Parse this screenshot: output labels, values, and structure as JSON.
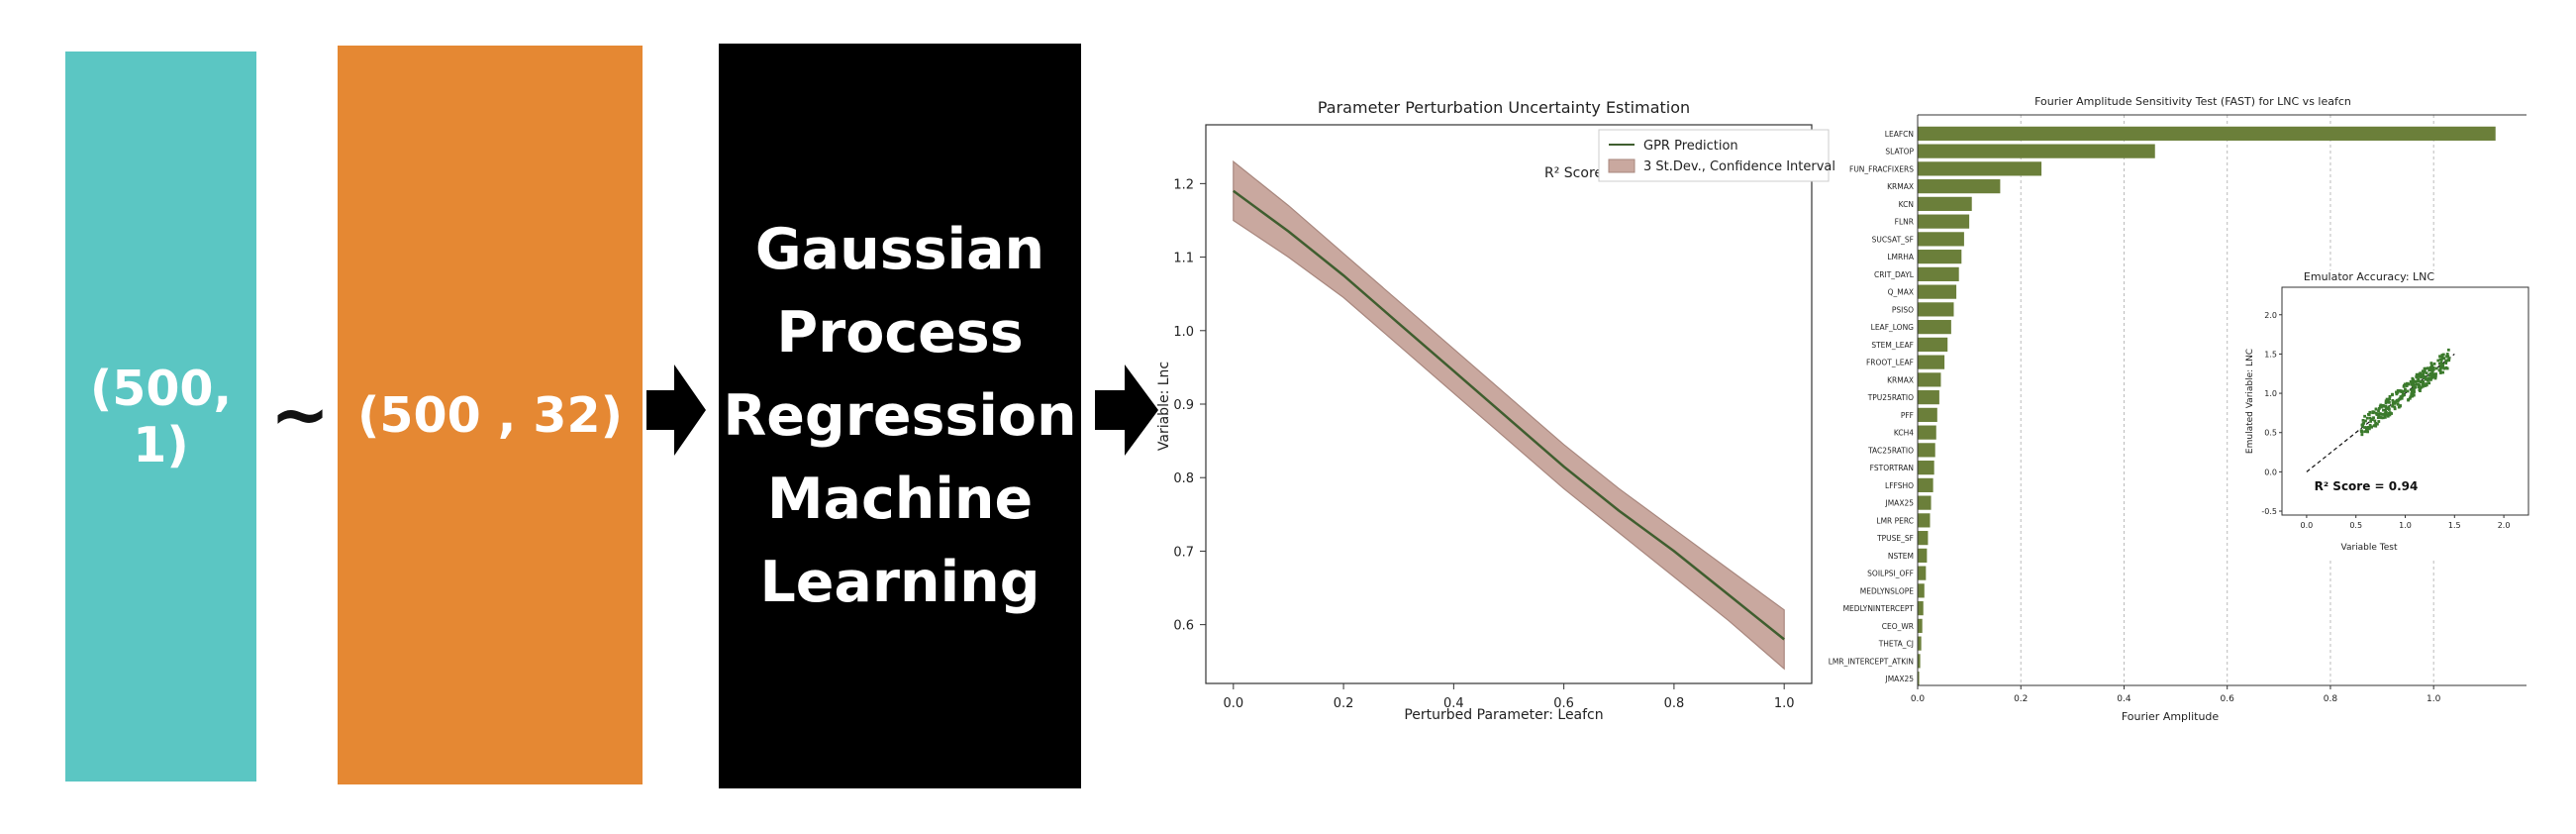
{
  "colors": {
    "input_block": "#5bc6c3",
    "params_block": "#e58833",
    "model_block": "#000000",
    "bar": "#6b7f3a",
    "line": "#3f5e2f",
    "band": "#c9a89f",
    "scatter": "#3b7a2c"
  },
  "diagram": {
    "input_shape": "(500, 1)",
    "tilde": "~",
    "param_shape": "(500 , 32)",
    "model_lines": [
      "Gaussian",
      "Process",
      "Regression",
      "Machine",
      "Learning"
    ]
  },
  "chart_data": [
    {
      "type": "line",
      "title": "Parameter Perturbation Uncertainty Estimation",
      "xlabel": "Perturbed Parameter: Leafcn",
      "ylabel": "Variable: Lnc",
      "xlim": [
        -0.05,
        1.05
      ],
      "ylim": [
        0.52,
        1.28
      ],
      "xticks": [
        "0.0",
        "0.2",
        "0.4",
        "0.6",
        "0.8",
        "1.0"
      ],
      "yticks": [
        "0.6",
        "0.7",
        "0.8",
        "0.9",
        "1.0",
        "1.1",
        "1.2"
      ],
      "annotation": "R² Score = 0.94",
      "legend_position": "top-right",
      "series": [
        {
          "name": "GPR Prediction",
          "x": [
            0.0,
            0.1,
            0.2,
            0.3,
            0.4,
            0.5,
            0.6,
            0.7,
            0.8,
            0.9,
            1.0
          ],
          "values": [
            1.19,
            1.135,
            1.075,
            1.01,
            0.945,
            0.88,
            0.815,
            0.755,
            0.7,
            0.64,
            0.58
          ]
        },
        {
          "name": "3 St.Dev., Confidence Interval",
          "x": [
            0.0,
            0.1,
            0.2,
            0.3,
            0.4,
            0.5,
            0.6,
            0.7,
            0.8,
            0.9,
            1.0
          ],
          "upper": [
            1.23,
            1.17,
            1.105,
            1.04,
            0.975,
            0.91,
            0.845,
            0.785,
            0.73,
            0.675,
            0.62
          ],
          "lower": [
            1.15,
            1.1,
            1.045,
            0.98,
            0.915,
            0.85,
            0.785,
            0.725,
            0.665,
            0.605,
            0.54
          ]
        }
      ]
    },
    {
      "type": "bar",
      "orientation": "horizontal",
      "title": "Fourier Amplitude Sensitivity Test (FAST) for LNC vs leafcn",
      "xlabel": "Fourier Amplitude",
      "xlim": [
        0.0,
        1.18
      ],
      "xticks": [
        "0.0",
        "0.2",
        "0.4",
        "0.6",
        "0.8",
        "1.0"
      ],
      "grid": true,
      "categories": [
        "LEAFCN",
        "SLATOP",
        "FUN_FRACFIXERS",
        "KRMAX",
        "KCN",
        "FLNR",
        "SUCSAT_SF",
        "LMRHA",
        "CRIT_DAYL",
        "Q_MAX",
        "PSISO",
        "LEAF_LONG",
        "STEM_LEAF",
        "FROOT_LEAF",
        "KRMAX",
        "TPU25RATIO",
        "PFF",
        "KCH4",
        "TAC25RATIO",
        "FSTORTRAN",
        "LFFSHO",
        "JMAX25",
        "LMR PERC",
        "TPUSE_SF",
        "NSTEM",
        "SOILPSI_OFF",
        "MEDLYNSLOPE",
        "MEDLYNINTERCEPT",
        "CEO_WR",
        "THETA_CJ",
        "LMR_INTERCEPT_ATKIN",
        "JMAX25"
      ],
      "values": [
        1.12,
        0.46,
        0.24,
        0.16,
        0.105,
        0.1,
        0.09,
        0.085,
        0.08,
        0.075,
        0.07,
        0.065,
        0.058,
        0.052,
        0.045,
        0.042,
        0.038,
        0.036,
        0.034,
        0.032,
        0.03,
        0.026,
        0.024,
        0.02,
        0.018,
        0.016,
        0.013,
        0.011,
        0.009,
        0.007,
        0.005,
        0.003
      ]
    },
    {
      "type": "scatter",
      "title": "Emulator Accuracy: LNC",
      "xlabel": "Variable Test",
      "ylabel": "Emulated Variable: LNC",
      "xlim": [
        -0.25,
        2.25
      ],
      "ylim": [
        -0.55,
        2.35
      ],
      "xticks": [
        "0.0",
        "0.5",
        "1.0",
        "1.5",
        "2.0"
      ],
      "yticks": [
        "-0.5",
        "0.0",
        "0.5",
        "1.0",
        "1.5",
        "2.0"
      ],
      "annotation": "R² Score = 0.94",
      "reference_line": {
        "x": [
          0.0,
          1.5
        ],
        "y": [
          0.0,
          1.5
        ]
      },
      "point_range": {
        "x": [
          0.55,
          1.45
        ],
        "y_center_offset": 0.0,
        "spread": 0.12
      },
      "n_points": 300
    }
  ]
}
